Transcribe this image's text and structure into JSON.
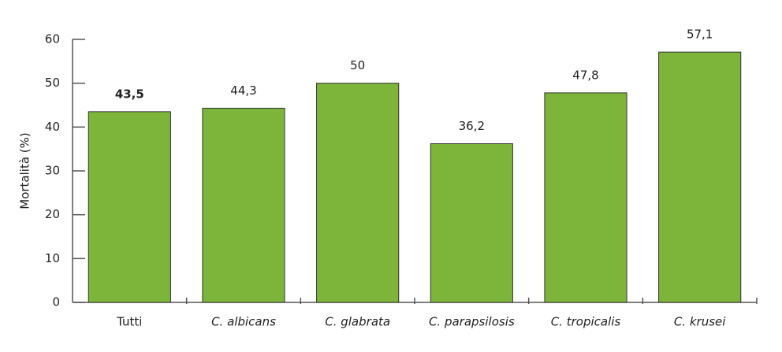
{
  "chart_data": {
    "type": "bar",
    "y_label": "Mortalità (%)",
    "categories": [
      "Tutti",
      "C. albicans",
      "C. glabrata",
      "C. parapsilosis",
      "C. tropicalis",
      "C. krusei"
    ],
    "values": [
      43.5,
      44.3,
      50,
      36.2,
      47.8,
      57.1
    ],
    "value_labels": [
      "43,5",
      "44,3",
      "50",
      "36,2",
      "47,8",
      "57,1"
    ],
    "color": "#7cb53a",
    "ylim": [
      0,
      60
    ],
    "yticks": [
      0,
      10,
      20,
      30,
      40,
      50,
      60
    ]
  }
}
